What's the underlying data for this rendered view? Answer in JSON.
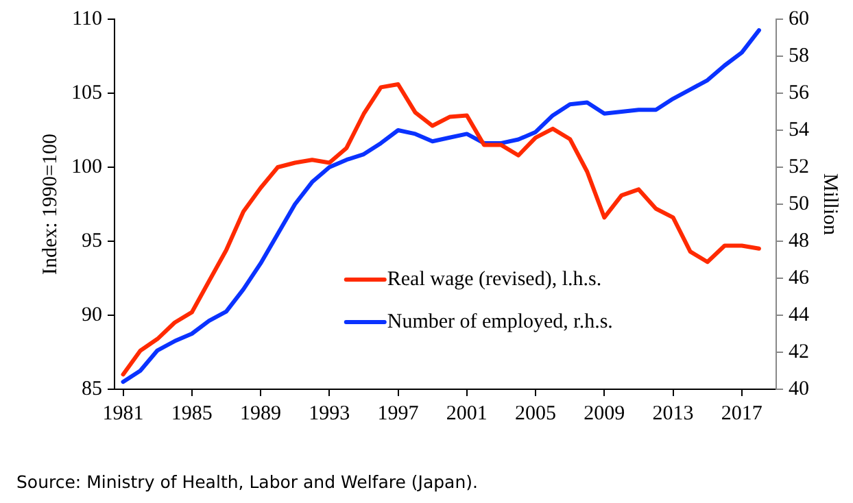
{
  "chart_data": {
    "type": "line",
    "x": [
      1981,
      1982,
      1983,
      1984,
      1985,
      1986,
      1987,
      1988,
      1989,
      1990,
      1991,
      1992,
      1993,
      1994,
      1995,
      1996,
      1997,
      1998,
      1999,
      2000,
      2001,
      2002,
      2003,
      2004,
      2005,
      2006,
      2007,
      2008,
      2009,
      2010,
      2011,
      2012,
      2013,
      2014,
      2015,
      2016,
      2017,
      2018
    ],
    "series": [
      {
        "name": "Real wage (revised), l.h.s.",
        "color": "#ff2a00",
        "values": [
          86.0,
          87.6,
          88.4,
          89.5,
          90.2,
          92.3,
          94.4,
          97.0,
          98.6,
          100.0,
          100.3,
          100.5,
          100.3,
          101.3,
          103.6,
          105.4,
          105.6,
          103.7,
          102.8,
          103.4,
          103.5,
          101.5,
          101.5,
          100.8,
          102.0,
          102.6,
          101.9,
          99.7,
          96.6,
          98.1,
          98.5,
          97.2,
          96.6,
          94.3,
          93.6,
          94.7,
          94.7,
          94.5
        ]
      },
      {
        "name": "Number of employed, r.h.s.",
        "color": "#0a32ff",
        "axis": "y2",
        "values": [
          40.4,
          41.0,
          42.1,
          42.6,
          43.0,
          43.7,
          44.2,
          45.4,
          46.8,
          48.4,
          50.0,
          51.2,
          52.0,
          52.4,
          52.7,
          53.3,
          54.0,
          53.8,
          53.4,
          53.6,
          53.8,
          53.3,
          53.3,
          53.5,
          53.9,
          54.8,
          55.4,
          55.5,
          54.9,
          55.0,
          55.1,
          55.1,
          55.7,
          56.2,
          56.7,
          57.5,
          58.2,
          59.4
        ]
      }
    ],
    "ylabel": "Index: 1990=100",
    "y2label": "Million",
    "xlim": [
      1980.5,
      2019
    ],
    "xticks": [
      1981,
      1985,
      1989,
      1993,
      1997,
      2001,
      2005,
      2009,
      2013,
      2017
    ],
    "ylim": [
      85,
      110
    ],
    "yticks": [
      85,
      90,
      95,
      100,
      105,
      110
    ],
    "y2lim": [
      40,
      60
    ],
    "y2ticks": [
      40,
      42,
      44,
      46,
      48,
      50,
      52,
      54,
      56,
      58,
      60
    ],
    "grid": false,
    "legend": "bottom",
    "marker": "none",
    "line_style": "solid",
    "annotations": [
      "Source: Ministry of Health, Labor and Welfare (Japan)."
    ]
  }
}
